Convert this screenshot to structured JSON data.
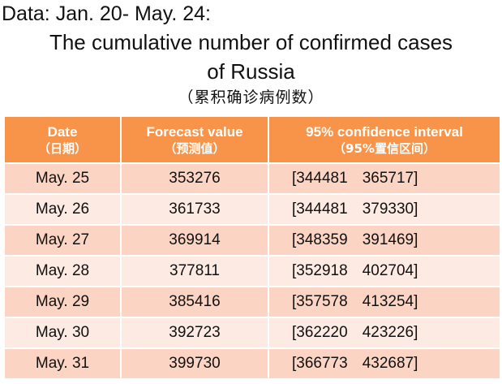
{
  "header": {
    "date_range": "Data: Jan. 20- May. 24:",
    "title_line1": "The cumulative number of confirmed cases",
    "title_line2": "of  Russia",
    "subtitle_cn": "（累积确诊病例数）"
  },
  "table": {
    "columns": [
      {
        "en": "Date",
        "cn": "（日期）"
      },
      {
        "en": "Forecast value",
        "cn": "（预测值）"
      },
      {
        "en": "95% confidence interval",
        "cn": "（95%置信区间）"
      }
    ],
    "rows": [
      {
        "date": "May. 25",
        "forecast": "353276",
        "ci_low": "[344481",
        "ci_high": "365717]"
      },
      {
        "date": "May. 26",
        "forecast": "361733",
        "ci_low": "[344481",
        "ci_high": "379330]"
      },
      {
        "date": "May. 27",
        "forecast": "369914",
        "ci_low": "[348359",
        "ci_high": "391469]"
      },
      {
        "date": "May. 28",
        "forecast": "377811",
        "ci_low": "[352918",
        "ci_high": "402704]"
      },
      {
        "date": "May. 29",
        "forecast": "385416",
        "ci_low": "[357578",
        "ci_high": "413254]"
      },
      {
        "date": "May. 30",
        "forecast": "392723",
        "ci_low": "[362220",
        "ci_high": "423226]"
      },
      {
        "date": "May. 31",
        "forecast": "399730",
        "ci_low": "[366773",
        "ci_high": "432687]"
      }
    ]
  },
  "colors": {
    "header_bg": "#f7944a",
    "row_dark": "#fbd4c3",
    "row_light": "#fdebe3"
  }
}
